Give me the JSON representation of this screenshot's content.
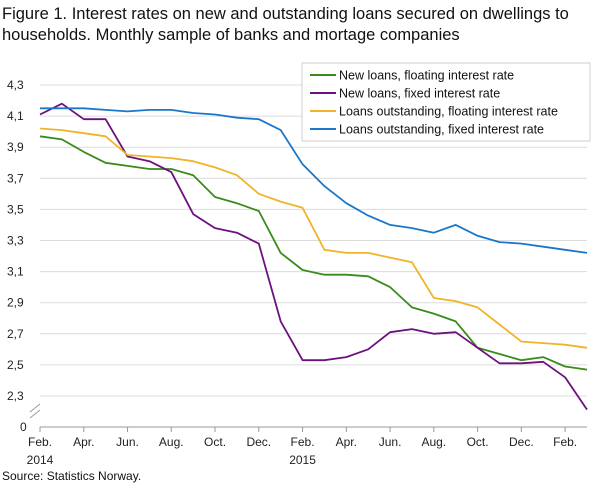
{
  "title": "Figure 1. Interest rates on new and outstanding loans secured on dwellings to households. Monthly sample of banks and mortage companies",
  "source": "Source: Statistics Norway.",
  "chart_data": {
    "type": "line",
    "x": [
      "2014-02",
      "2014-03",
      "2014-04",
      "2014-05",
      "2014-06",
      "2014-07",
      "2014-08",
      "2014-09",
      "2014-10",
      "2014-11",
      "2014-12",
      "2015-01",
      "2015-02",
      "2015-03",
      "2015-04",
      "2015-05",
      "2015-06",
      "2015-07",
      "2015-08",
      "2015-09",
      "2015-10",
      "2015-11",
      "2015-12",
      "2016-01",
      "2016-02",
      "2016-03"
    ],
    "x_tick_labels": [
      {
        "i": 0,
        "label": "Feb.",
        "sub": "2014"
      },
      {
        "i": 2,
        "label": "Apr.",
        "sub": ""
      },
      {
        "i": 4,
        "label": "Jun.",
        "sub": ""
      },
      {
        "i": 6,
        "label": "Aug.",
        "sub": ""
      },
      {
        "i": 8,
        "label": "Oct.",
        "sub": ""
      },
      {
        "i": 10,
        "label": "Dec.",
        "sub": ""
      },
      {
        "i": 12,
        "label": "Feb.",
        "sub": "2015"
      },
      {
        "i": 14,
        "label": "Apr.",
        "sub": ""
      },
      {
        "i": 16,
        "label": "Jun.",
        "sub": ""
      },
      {
        "i": 18,
        "label": "Aug.",
        "sub": ""
      },
      {
        "i": 20,
        "label": "Oct.",
        "sub": ""
      },
      {
        "i": 22,
        "label": "Dec.",
        "sub": ""
      },
      {
        "i": 24,
        "label": "Feb.",
        "sub": ""
      }
    ],
    "y_ticks": [
      "4,3",
      "4,1",
      "3,9",
      "3,7",
      "3,5",
      "3,3",
      "3,1",
      "2,9",
      "2,7",
      "2,5",
      "2,3",
      "0"
    ],
    "y_tick_values": [
      4.3,
      4.1,
      3.9,
      3.7,
      3.5,
      3.3,
      3.1,
      2.9,
      2.7,
      2.5,
      2.3
    ],
    "y_break": true,
    "ylim": [
      2.2,
      4.3
    ],
    "grid": "horizontal",
    "legend_position": "top-right",
    "series": [
      {
        "name": "New loans, floating interest rate",
        "color": "#3a8b1a",
        "values": [
          3.97,
          3.95,
          3.87,
          3.8,
          3.78,
          3.76,
          3.76,
          3.72,
          3.58,
          3.54,
          3.49,
          3.22,
          3.11,
          3.08,
          3.08,
          3.07,
          3.0,
          2.87,
          2.83,
          2.78,
          2.61,
          2.57,
          2.53,
          2.55,
          2.49,
          2.47
        ]
      },
      {
        "name": "New loans, fixed interest rate",
        "color": "#6c117e",
        "values": [
          4.11,
          4.18,
          4.08,
          4.08,
          3.84,
          3.81,
          3.74,
          3.47,
          3.38,
          3.35,
          3.28,
          2.78,
          2.53,
          2.53,
          2.55,
          2.6,
          2.71,
          2.73,
          2.7,
          2.71,
          2.61,
          2.51,
          2.51,
          2.52,
          2.42,
          2.22
        ]
      },
      {
        "name": "Loans outstanding, floating interest rate",
        "color": "#f0b42a",
        "values": [
          4.02,
          4.01,
          3.99,
          3.97,
          3.85,
          3.84,
          3.83,
          3.81,
          3.77,
          3.72,
          3.6,
          3.55,
          3.51,
          3.24,
          3.22,
          3.22,
          3.19,
          3.16,
          2.93,
          2.91,
          2.87,
          2.76,
          2.65,
          2.64,
          2.63,
          2.61
        ]
      },
      {
        "name": "Loans outstanding, fixed interest rate",
        "color": "#1a77c9",
        "values": [
          4.15,
          4.15,
          4.15,
          4.14,
          4.13,
          4.14,
          4.14,
          4.12,
          4.11,
          4.09,
          4.08,
          4.01,
          3.79,
          3.65,
          3.54,
          3.46,
          3.4,
          3.38,
          3.35,
          3.4,
          3.33,
          3.29,
          3.28,
          3.26,
          3.24,
          3.22
        ]
      }
    ]
  }
}
